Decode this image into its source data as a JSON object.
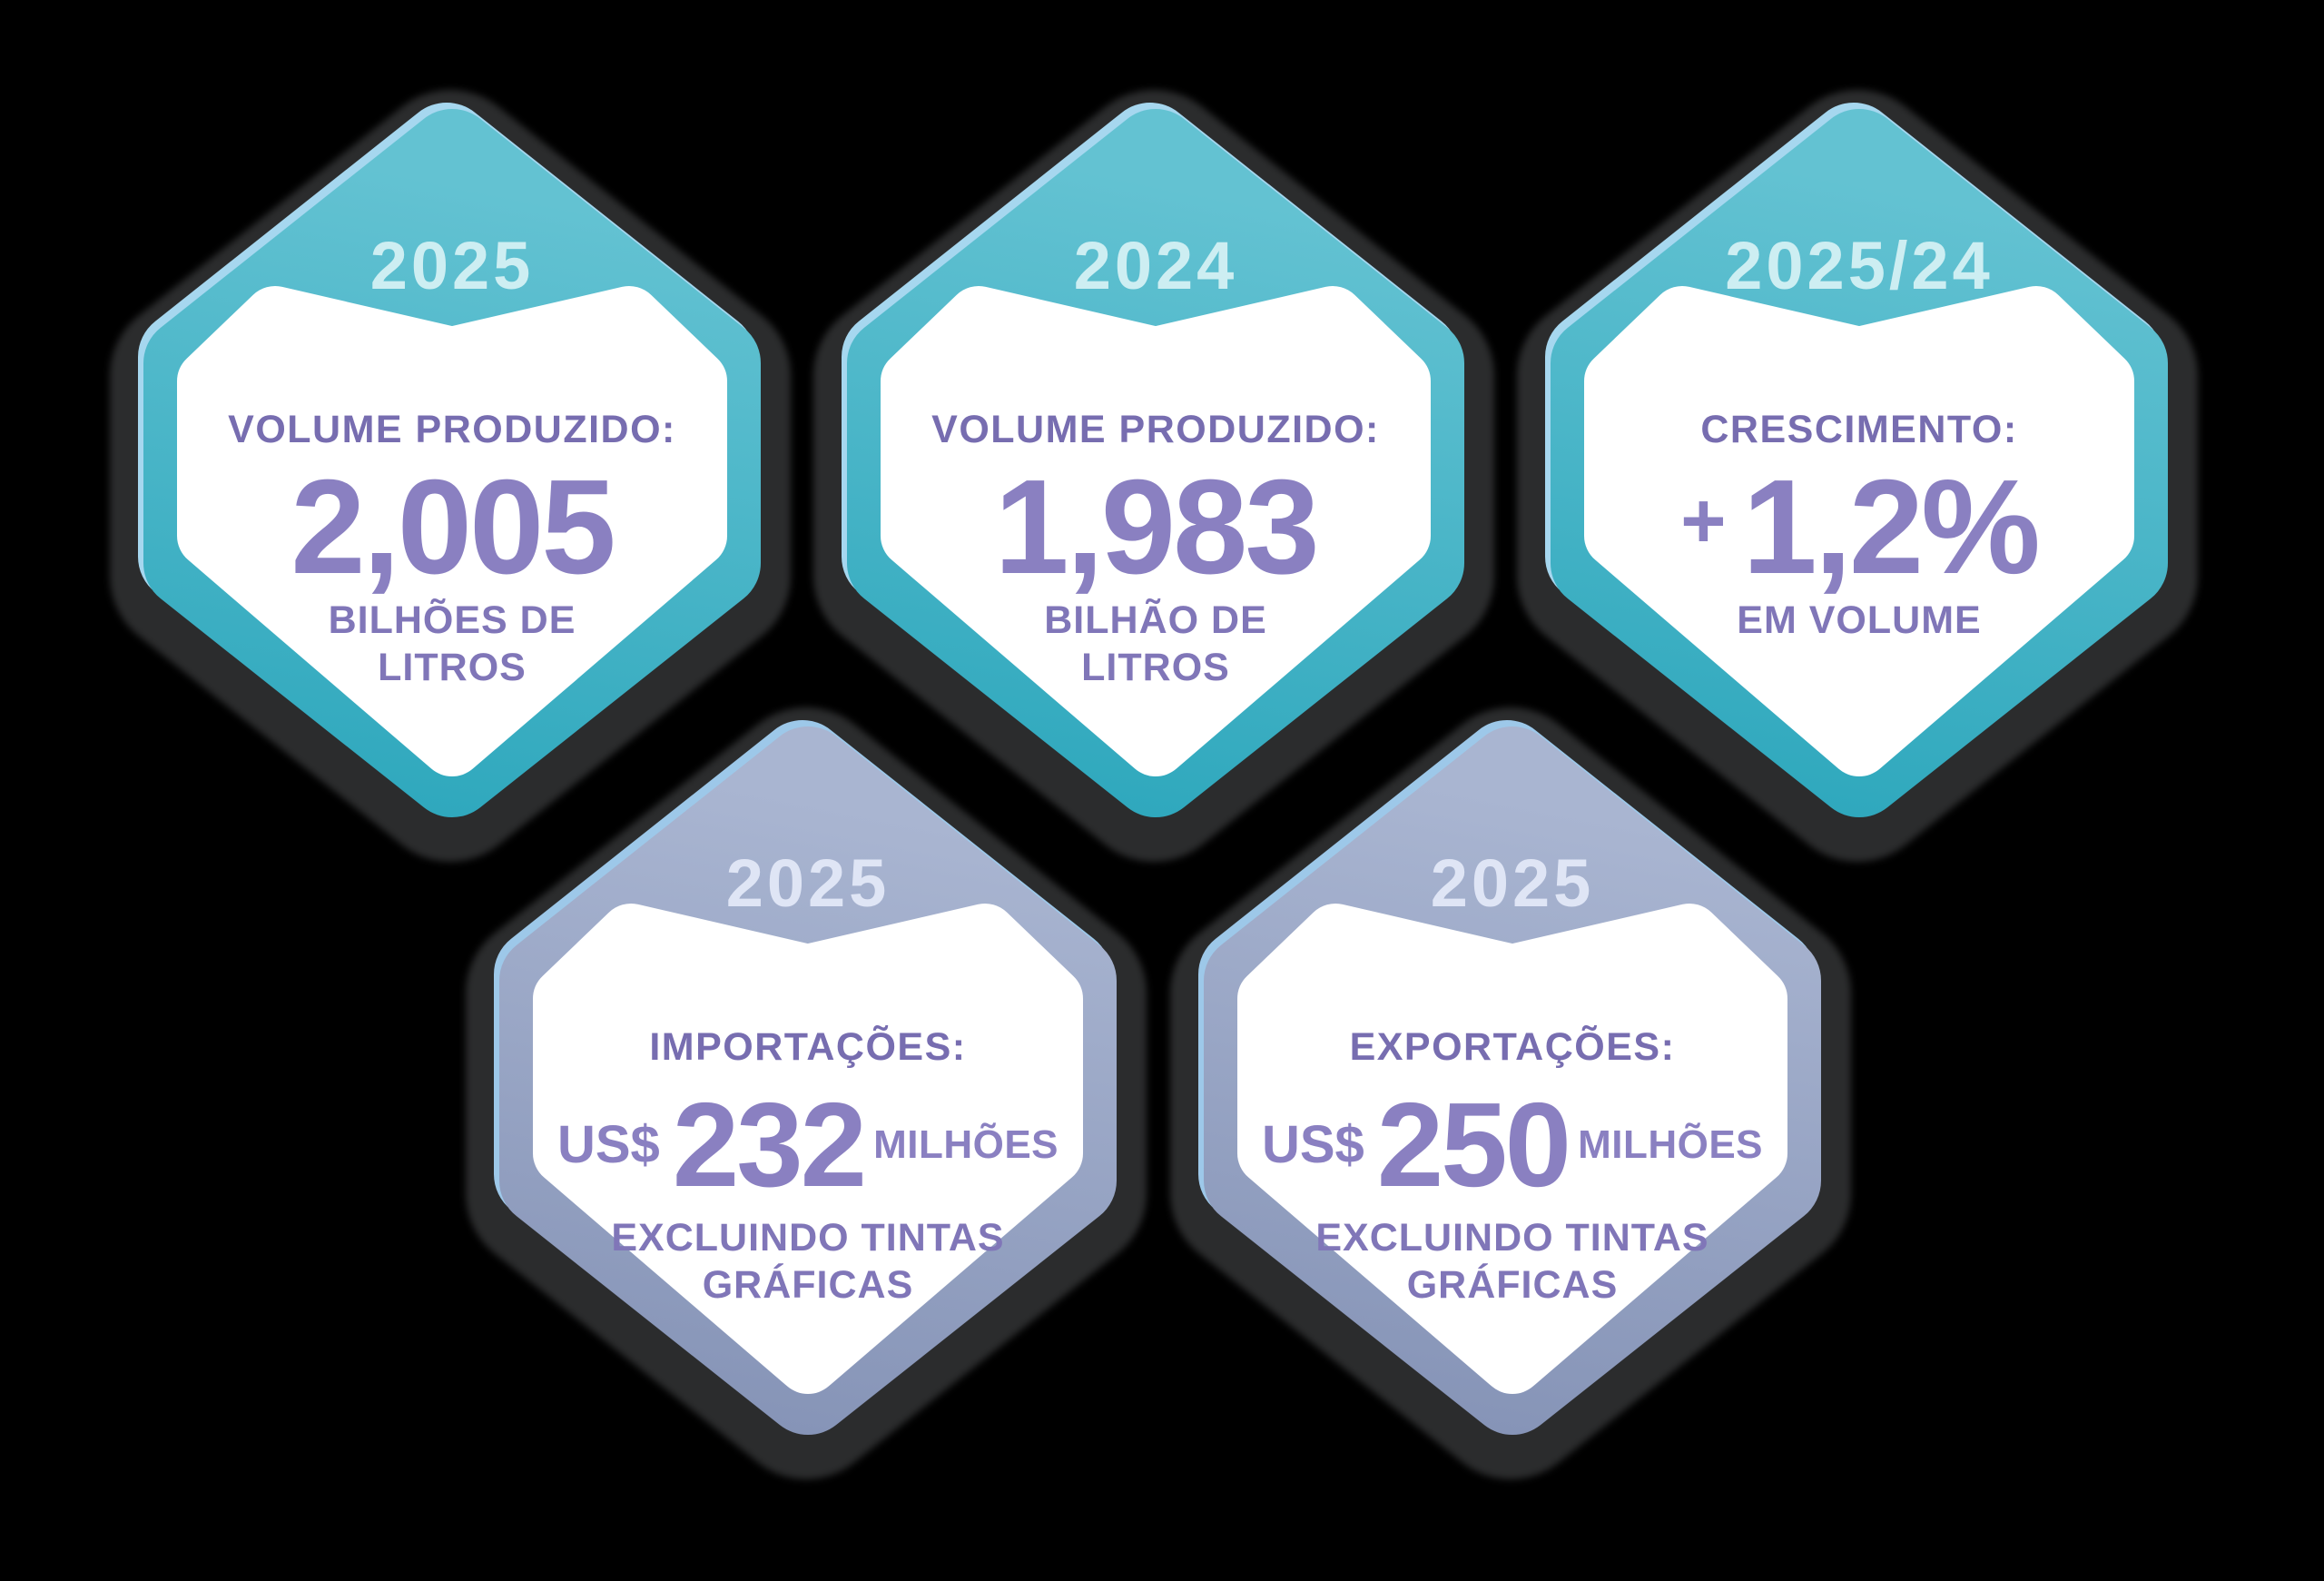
{
  "background_color": "#000000",
  "colors": {
    "teal_top": "#63c2d2",
    "teal_bottom": "#2fa8bd",
    "teal_highlight": "#a6d7ef",
    "slate_top": "#a9b5d1",
    "slate_bottom": "#8694b7",
    "slate_highlight": "#9dc8e9",
    "inner_white": "#ffffff",
    "shadow_plate": "#2b2c2d",
    "year_text_teal": "#cdeef2",
    "year_text_slate": "#dfe5f5",
    "label_purple": "#776db0",
    "number_purple": "#8a80c1",
    "sublabel_purple": "#8076b8"
  },
  "cards": [
    {
      "variant": "teal",
      "value_style": "plain",
      "year": "2025",
      "label": "VOLUME PRODUZIDO:",
      "value": {
        "prefix": "",
        "number": "2,005",
        "suffix": ""
      },
      "sublabel": [
        "BILHÕES DE",
        "LITROS"
      ]
    },
    {
      "variant": "teal",
      "value_style": "plain",
      "year": "2024",
      "label": "VOLUME PRODUZIDO:",
      "value": {
        "prefix": "",
        "number": "1,983",
        "suffix": ""
      },
      "sublabel": [
        "BILHÃO DE",
        "LITROS"
      ]
    },
    {
      "variant": "teal",
      "value_style": "growth",
      "year": "2025/24",
      "label": "CRESCIMENTO:",
      "value": {
        "prefix": "+",
        "number": "1,2%",
        "suffix": ""
      },
      "sublabel": [
        "EM VOLUME"
      ]
    },
    {
      "variant": "slate",
      "value_style": "money",
      "year": "2025",
      "label": "IMPORTAÇÕES:",
      "value": {
        "prefix": "US$",
        "number": "232",
        "suffix": "MILHÕES"
      },
      "sublabel": [
        "EXCLUINDO TINTAS",
        "GRÁFICAS"
      ]
    },
    {
      "variant": "slate",
      "value_style": "money",
      "year": "2025",
      "label": "EXPORTAÇÕES:",
      "value": {
        "prefix": "US$",
        "number": "250",
        "suffix": "MILHÕES"
      },
      "sublabel": [
        "EXCLUINDO TINTAS",
        "GRÁFICAS"
      ]
    }
  ]
}
